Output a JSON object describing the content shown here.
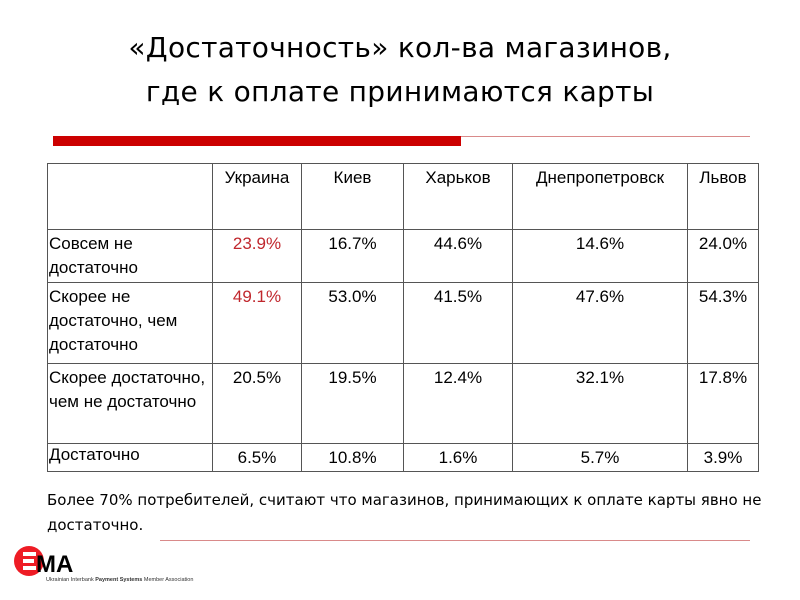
{
  "title": {
    "line1": "«Достаточность» кол-ва магазинов,",
    "line2": "где к оплате принимаются карты"
  },
  "table": {
    "columns": [
      "",
      "Украина",
      "Киев",
      "Харьков",
      "Днепропетровск",
      "Львов"
    ],
    "rows": [
      {
        "label": "Совсем не достаточно",
        "values": [
          "23.9%",
          "16.7%",
          "44.6%",
          "14.6%",
          "24.0%"
        ]
      },
      {
        "label": "Скорее не достаточно, чем достаточно",
        "values": [
          "49.1%",
          "53.0%",
          "41.5%",
          "47.6%",
          "54.3%"
        ]
      },
      {
        "label": "Скорее достаточно, чем не достаточно",
        "values": [
          "20.5%",
          "19.5%",
          "12.4%",
          "32.1%",
          "17.8%"
        ]
      },
      {
        "label": "Достаточно",
        "values": [
          "6.5%",
          "10.8%",
          "1.6%",
          "5.7%",
          "3.9%"
        ]
      }
    ],
    "highlight_color": "#c0272d"
  },
  "note": "Более 70% потребителей, считают что магазинов, принимающих к оплате карты явно не достаточно.",
  "logo": {
    "mark": "EMA",
    "subtitle_pre": "Ukrainian Interbank ",
    "subtitle_bold": "Payment Systems",
    "subtitle_post": " Member Association"
  },
  "colors": {
    "accent": "#cc0000"
  }
}
